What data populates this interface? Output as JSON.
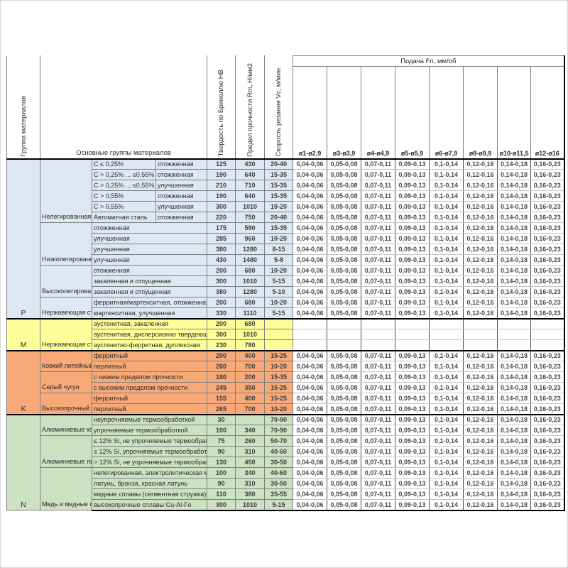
{
  "colors": {
    "steel": "#DEE8F4",
    "stainless": "#FFFF99",
    "cast": "#F7A978",
    "nonfer": "#CDE2C2"
  },
  "table": {
    "headers": {
      "group_col": "Группа материалов",
      "main_group": "Основные группы материалов",
      "hb": "Твердость по Бринеллю HB",
      "rm": "Предел прочности Rm, Н/мм2",
      "vc": "Скорость резания Vc, м/мин",
      "feed": "Подача Fn, мм/об",
      "diameters": [
        "ø1-ø2,9",
        "ø3-ø3,9",
        "ø4-ø4,9",
        "ø5-ø5,9",
        "ø6-ø7,9",
        "ø8-ø9,9",
        "ø10-ø11,5",
        "ø12-ø16"
      ]
    },
    "feed_values": [
      "0,04-0,06",
      "0,05-0,08",
      "0,07-0,11",
      "0,09-0,13",
      "0,1-0,14",
      "0,12-0,16",
      "0,14-0,18",
      "0,16-0,23"
    ],
    "rows": [
      {
        "color": "steel",
        "sec_start": true,
        "group": {
          "text": "P",
          "rows": 15
        },
        "subgroup": {
          "text": "Нелегированная сталь",
          "rows": 6
        },
        "material": "C ≤ 0,25%",
        "state": "отожженная",
        "hb": "125",
        "rm": "430",
        "vc": "20-40",
        "feeds": true
      },
      {
        "color": "steel",
        "material": "C > 0,25% ... ≤0,55%",
        "state": "отожженная",
        "hb": "190",
        "rm": "640",
        "vc": "15-35",
        "feeds": true
      },
      {
        "color": "steel",
        "material": "C > 0,25% ... ≤0,55%",
        "state": "улучшенная",
        "hb": "210",
        "rm": "710",
        "vc": "15-35",
        "feeds": true
      },
      {
        "color": "steel",
        "material": "C > 0,55%",
        "state": "отожженная",
        "hb": "190",
        "rm": "640",
        "vc": "15-35",
        "feeds": true
      },
      {
        "color": "steel",
        "material": "C > 0,55%",
        "state": "улучшенная",
        "hb": "300",
        "rm": "1010",
        "vc": "10-20",
        "feeds": true
      },
      {
        "color": "steel",
        "material": "Автоматная сталь",
        "state": "отожженная",
        "hb": "220",
        "rm": "750",
        "vc": "20-40",
        "feeds": true
      },
      {
        "color": "steel",
        "subgroup": {
          "text": "Низколегированная сталь",
          "rows": 4
        },
        "material": "отожженная",
        "hb": "175",
        "rm": "590",
        "vc": "15-35",
        "feeds": true
      },
      {
        "color": "steel",
        "material": "улучшенная",
        "hb": "285",
        "rm": "960",
        "vc": "10-20",
        "feeds": true
      },
      {
        "color": "steel",
        "material": "улучшенная",
        "hb": "380",
        "rm": "1280",
        "vc": "8-15",
        "feeds": true
      },
      {
        "color": "steel",
        "material": "улучшенная",
        "hb": "430",
        "rm": "1480",
        "vc": "5-8",
        "feeds": true
      },
      {
        "color": "steel",
        "subgroup": {
          "text": "Высоколегированная сталь",
          "rows": 3
        },
        "material": "отожженная",
        "hb": "200",
        "rm": "680",
        "vc": "10-20",
        "feeds": true
      },
      {
        "color": "steel",
        "material": "закаленная и отпущенная",
        "hb": "300",
        "rm": "1010",
        "vc": "5-15",
        "feeds": true
      },
      {
        "color": "steel",
        "material": "закаленная и отпущенная",
        "hb": "380",
        "rm": "1280",
        "vc": "5-10",
        "feeds": true
      },
      {
        "color": "steel",
        "subgroup": {
          "text": "Нержавеющая сталь",
          "rows": 2
        },
        "material": "ферритная/мартенситная, отожженная",
        "hb": "200",
        "rm": "680",
        "vc": "10-20",
        "feeds": true
      },
      {
        "color": "steel",
        "material": "мартенситная, улучшенная",
        "hb": "330",
        "rm": "1110",
        "vc": "5-15",
        "feeds": true
      },
      {
        "color": "stainless",
        "sec_start": true,
        "group": {
          "text": "M",
          "rows": 3
        },
        "subgroup": {
          "text": "Нержавеющая сталь",
          "rows": 3
        },
        "material": "аустенитная, закаленная",
        "hb": "200",
        "rm": "680",
        "vc": "",
        "feeds": false
      },
      {
        "color": "stainless",
        "material": "аустенитная, дисперсионно твердеющая",
        "hb": "300",
        "rm": "1010",
        "vc": "",
        "feeds": false
      },
      {
        "color": "stainless",
        "material": "аустенитно-ферритная, дуплексная",
        "hb": "230",
        "rm": "780",
        "vc": "",
        "feeds": false
      },
      {
        "color": "cast",
        "sec_start": true,
        "group": {
          "text": "K",
          "rows": 6
        },
        "subgroup": {
          "text": "Ковкий литейный чугун",
          "rows": 2
        },
        "material": "ферритный",
        "hb": "200",
        "rm": "400",
        "vc": "15-25",
        "feeds": true
      },
      {
        "color": "cast",
        "material": "перлитный",
        "hb": "260",
        "rm": "700",
        "vc": "10-20",
        "feeds": true
      },
      {
        "color": "cast",
        "subgroup": {
          "text": "Серый чугун",
          "rows": 2
        },
        "material": "с низким пределом прочности",
        "hb": "180",
        "rm": "200",
        "vc": "15-35",
        "feeds": true
      },
      {
        "color": "cast",
        "material": "с высоким пределом прочности",
        "hb": "245",
        "rm": "350",
        "vc": "15-25",
        "feeds": true
      },
      {
        "color": "cast",
        "subgroup": {
          "text": "Высокопрочный чугун",
          "rows": 2
        },
        "material": "ферритный",
        "hb": "155",
        "rm": "400",
        "vc": "15-25",
        "feeds": true
      },
      {
        "color": "cast",
        "material": "перлитный",
        "hb": "265",
        "rm": "700",
        "vc": "10-20",
        "feeds": true
      },
      {
        "color": "nonfer",
        "sec_start": true,
        "group": {
          "text": "N",
          "rows": 9
        },
        "subgroup": {
          "text": "Алюминиевые кованые сплавы",
          "rows": 2
        },
        "material": "неупрочняемые термообработкой",
        "hb": "30",
        "rm": "",
        "vc": "70-90",
        "feeds": true
      },
      {
        "color": "nonfer",
        "material": "упрочняемые термообработкой",
        "hb": "100",
        "rm": "340",
        "vc": "70-90",
        "feeds": true
      },
      {
        "color": "nonfer",
        "subgroup": {
          "text": "Алюминиевые литейные сплавы",
          "rows": 3
        },
        "material": "≤ 12% Si, не упрочняемые термообработкой",
        "hb": "75",
        "rm": "260",
        "vc": "50-70",
        "feeds": true
      },
      {
        "color": "nonfer",
        "material": "≤ 12% Si, упрочняемые термообработкой",
        "hb": "90",
        "rm": "310",
        "vc": "40-60",
        "feeds": true
      },
      {
        "color": "nonfer",
        "material": "> 12% Si, не упрочняемые термообработкой",
        "hb": "130",
        "rm": "450",
        "vc": "30-50",
        "feeds": true
      },
      {
        "color": "nonfer",
        "subgroup": {
          "text": "Медь и медные сплавы",
          "rows": 4
        },
        "material": "нелегированная, электролитическая медь",
        "hb": "100",
        "rm": "340",
        "vc": "40-60",
        "feeds": true
      },
      {
        "color": "nonfer",
        "material": "латунь, бронза, красная латунь",
        "hb": "90",
        "rm": "310",
        "vc": "30-50",
        "feeds": true
      },
      {
        "color": "nonfer",
        "material": "медные сплавы (сегментная стружка)",
        "hb": "110",
        "rm": "380",
        "vc": "35-55",
        "feeds": true
      },
      {
        "color": "nonfer",
        "material": "высокопрочные сплавы Cu-Al-Fe",
        "hb": "300",
        "rm": "1010",
        "vc": "5-15",
        "feeds": true
      }
    ]
  }
}
